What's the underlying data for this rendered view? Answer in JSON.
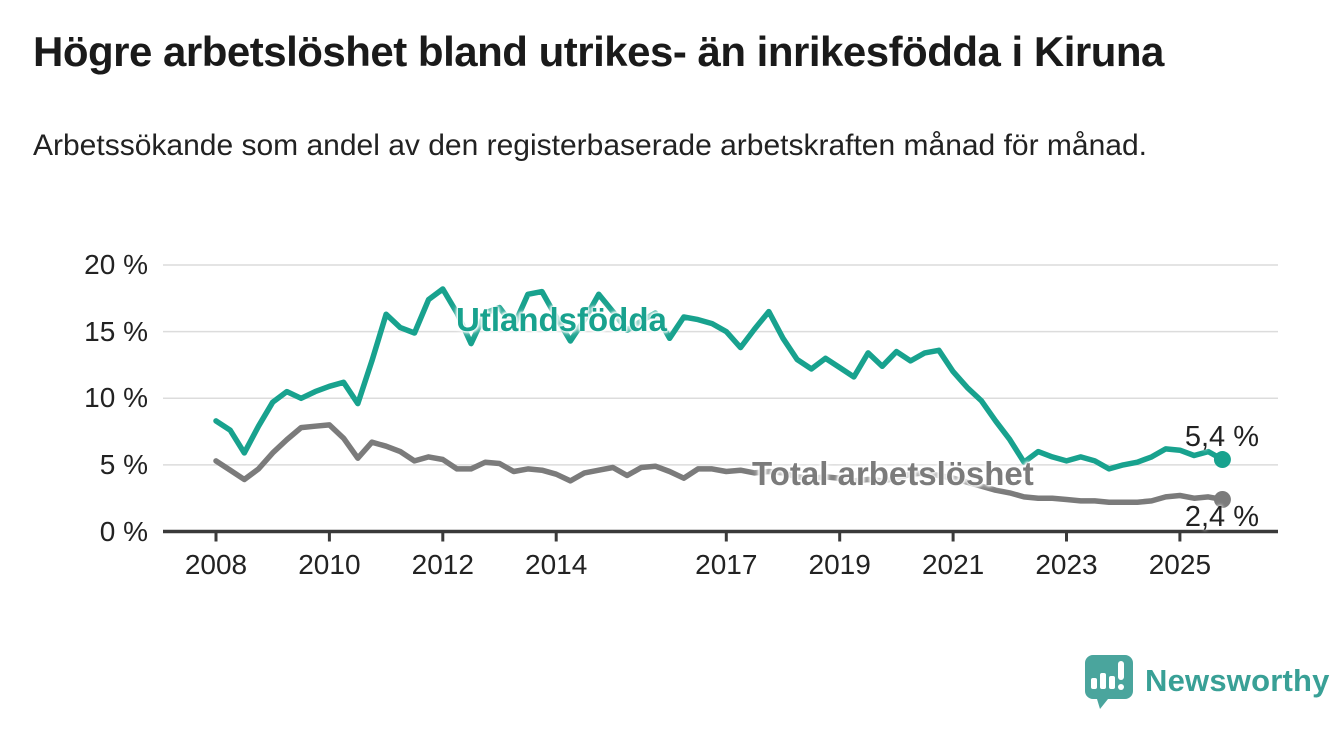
{
  "title": "Högre arbetslöshet bland utrikes- än inrikesfödda i Kiruna",
  "subtitle": "Arbetssökande som andel av den registerbaserade arbetskraften månad för månad.",
  "footer": {
    "brand": "Newsworthy"
  },
  "colors": {
    "accent_teal": "#18a28e",
    "series_gray": "#7b7b7b",
    "text_dark": "#222222",
    "gridline": "#dcdcdc",
    "axis": "#3a3a3a",
    "logo_teal": "#4aa59d"
  },
  "chart_data": {
    "type": "line",
    "title": "Högre arbetslöshet bland utrikes- än inrikesfödda i Kiruna",
    "xlabel": "",
    "ylabel": "",
    "ylim": [
      0,
      20
    ],
    "xlim": [
      2007.05,
      2026.75
    ],
    "grid": true,
    "legend": "inline-labels",
    "y_ticks": [
      {
        "label": "20 %",
        "value": 20
      },
      {
        "label": "15 %",
        "value": 15
      },
      {
        "label": "10 %",
        "value": 10
      },
      {
        "label": "5 %",
        "value": 5
      },
      {
        "label": "0 %",
        "value": 0
      }
    ],
    "x_ticks": [
      {
        "label": "2008",
        "value": 2008
      },
      {
        "label": "2010",
        "value": 2010
      },
      {
        "label": "2012",
        "value": 2012
      },
      {
        "label": "2014",
        "value": 2014
      },
      {
        "label": "2017",
        "value": 2017
      },
      {
        "label": "2019",
        "value": 2019
      },
      {
        "label": "2021",
        "value": 2021
      },
      {
        "label": "2023",
        "value": 2023
      },
      {
        "label": "2025",
        "value": 2025
      }
    ],
    "x": [
      2008.0,
      2008.25,
      2008.5,
      2008.75,
      2009.0,
      2009.25,
      2009.5,
      2009.75,
      2010.0,
      2010.25,
      2010.5,
      2010.75,
      2011.0,
      2011.25,
      2011.5,
      2011.75,
      2012.0,
      2012.25,
      2012.5,
      2012.75,
      2013.0,
      2013.25,
      2013.5,
      2013.75,
      2014.0,
      2014.25,
      2014.5,
      2014.75,
      2015.0,
      2015.25,
      2015.5,
      2015.75,
      2016.0,
      2016.25,
      2016.5,
      2016.75,
      2017.0,
      2017.25,
      2017.5,
      2017.75,
      2018.0,
      2018.25,
      2018.5,
      2018.75,
      2019.0,
      2019.25,
      2019.5,
      2019.75,
      2020.0,
      2020.25,
      2020.5,
      2020.75,
      2021.0,
      2021.25,
      2021.5,
      2021.75,
      2022.0,
      2022.25,
      2022.5,
      2022.75,
      2023.0,
      2023.25,
      2023.5,
      2023.75,
      2024.0,
      2024.25,
      2024.5,
      2024.75,
      2025.0,
      2025.25,
      2025.5,
      2025.75
    ],
    "series": [
      {
        "name": "Utlandsfödda",
        "color": "#18a28e",
        "end_label": "5,4 %",
        "end_value": 5.4,
        "values": [
          8.3,
          7.6,
          5.9,
          7.9,
          9.7,
          10.5,
          10.0,
          10.5,
          10.9,
          11.2,
          9.6,
          12.8,
          16.3,
          15.3,
          14.9,
          17.4,
          18.2,
          16.4,
          14.1,
          16.4,
          16.8,
          15.4,
          17.8,
          18.0,
          16.1,
          14.3,
          15.9,
          17.8,
          16.5,
          15.1,
          15.8,
          16.4,
          14.5,
          16.1,
          15.9,
          15.6,
          15.0,
          13.8,
          15.2,
          16.5,
          14.5,
          12.9,
          12.2,
          13.0,
          12.3,
          11.6,
          13.4,
          12.4,
          13.5,
          12.8,
          13.4,
          13.6,
          12.0,
          10.8,
          9.8,
          8.3,
          6.9,
          5.2,
          6.0,
          5.6,
          5.3,
          5.6,
          5.3,
          4.7,
          5.0,
          5.2,
          5.6,
          6.2,
          6.1,
          5.7,
          6.0,
          5.4
        ]
      },
      {
        "name": "Total arbetslöshet",
        "color": "#7b7b7b",
        "end_label": "2,4 %",
        "end_value": 2.4,
        "values": [
          5.3,
          4.6,
          3.9,
          4.7,
          5.9,
          6.9,
          7.8,
          7.9,
          8.0,
          7.0,
          5.5,
          6.7,
          6.4,
          6.0,
          5.3,
          5.6,
          5.4,
          4.7,
          4.7,
          5.2,
          5.1,
          4.5,
          4.7,
          4.6,
          4.3,
          3.8,
          4.4,
          4.6,
          4.8,
          4.2,
          4.8,
          4.9,
          4.5,
          4.0,
          4.7,
          4.7,
          4.5,
          4.6,
          4.4,
          4.5,
          4.4,
          4.1,
          4.0,
          4.1,
          4.0,
          3.8,
          3.9,
          3.8,
          4.0,
          4.3,
          4.4,
          4.2,
          4.0,
          3.7,
          3.4,
          3.1,
          2.9,
          2.6,
          2.5,
          2.5,
          2.4,
          2.3,
          2.3,
          2.2,
          2.2,
          2.2,
          2.3,
          2.6,
          2.7,
          2.5,
          2.6,
          2.4
        ]
      }
    ]
  }
}
